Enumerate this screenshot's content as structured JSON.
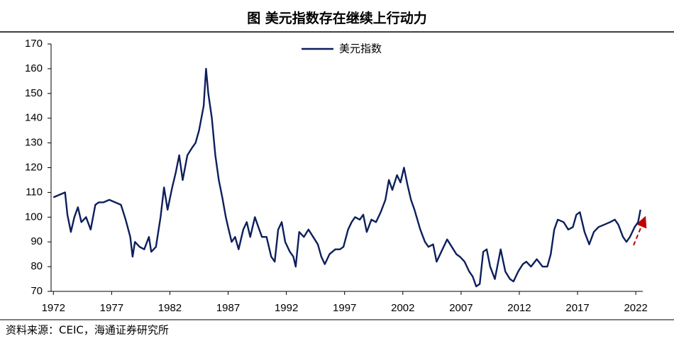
{
  "chart_data": {
    "type": "line",
    "title": "图  美元指数存在继续上行动力",
    "source": "资料来源：CEIC，海通证券研究所",
    "legend": "top",
    "xlim": [
      1971.8,
      2022.6
    ],
    "xticks": [
      1972,
      1977,
      1982,
      1987,
      1992,
      1997,
      2002,
      2007,
      2012,
      2017,
      2022
    ],
    "ylim": [
      70,
      170
    ],
    "yticks": [
      70,
      80,
      90,
      100,
      110,
      120,
      130,
      140,
      150,
      160,
      170
    ],
    "x": [
      1972.0,
      1972.5,
      1973.0,
      1973.2,
      1973.5,
      1973.8,
      1974.1,
      1974.4,
      1974.8,
      1975.2,
      1975.6,
      1975.9,
      1976.3,
      1976.8,
      1977.3,
      1977.8,
      1978.2,
      1978.6,
      1978.8,
      1979.0,
      1979.4,
      1979.8,
      1980.2,
      1980.4,
      1980.8,
      1981.2,
      1981.5,
      1981.8,
      1982.2,
      1982.5,
      1982.8,
      1983.1,
      1983.5,
      1983.9,
      1984.2,
      1984.5,
      1984.9,
      1985.1,
      1985.3,
      1985.6,
      1985.9,
      1986.2,
      1986.5,
      1986.8,
      1987.0,
      1987.3,
      1987.6,
      1987.9,
      1988.3,
      1988.6,
      1988.9,
      1989.3,
      1989.6,
      1989.9,
      1990.3,
      1990.7,
      1991.0,
      1991.3,
      1991.6,
      1991.9,
      1992.3,
      1992.6,
      1992.8,
      1993.1,
      1993.5,
      1993.9,
      1994.3,
      1994.7,
      1995.0,
      1995.3,
      1995.7,
      1996.2,
      1996.6,
      1996.9,
      1997.3,
      1997.6,
      1997.9,
      1998.3,
      1998.6,
      1998.9,
      1999.3,
      1999.7,
      2000.1,
      2000.5,
      2000.8,
      2001.1,
      2001.5,
      2001.8,
      2002.1,
      2002.4,
      2002.7,
      2003.0,
      2003.5,
      2003.9,
      2004.2,
      2004.6,
      2004.9,
      2005.3,
      2005.8,
      2006.2,
      2006.6,
      2006.9,
      2007.3,
      2007.7,
      2008.0,
      2008.3,
      2008.6,
      2008.9,
      2009.2,
      2009.5,
      2009.9,
      2010.4,
      2010.8,
      2011.2,
      2011.5,
      2011.9,
      2012.3,
      2012.6,
      2013.0,
      2013.5,
      2014.0,
      2014.4,
      2014.7,
      2015.0,
      2015.3,
      2015.8,
      2016.2,
      2016.6,
      2016.9,
      2017.2,
      2017.6,
      2018.0,
      2018.4,
      2018.8,
      2019.3,
      2019.8,
      2020.2,
      2020.5,
      2020.9,
      2021.2,
      2021.5,
      2021.9,
      2022.2,
      2022.4
    ],
    "series": [
      {
        "name": "美元指数",
        "color": "#0d1f5c",
        "values": [
          108,
          109,
          110,
          101,
          94,
          100,
          104,
          98,
          100,
          95,
          105,
          106,
          106,
          107,
          106,
          105,
          99,
          92,
          84,
          90,
          88,
          87,
          92,
          86,
          88,
          100,
          112,
          103,
          112,
          118,
          125,
          115,
          125,
          128,
          130,
          135,
          145,
          160,
          150,
          140,
          125,
          115,
          108,
          100,
          96,
          90,
          92,
          87,
          95,
          98,
          92,
          100,
          96,
          92,
          92,
          84,
          82,
          95,
          98,
          90,
          86,
          84,
          80,
          94,
          92,
          95,
          92,
          89,
          84,
          81,
          85,
          87,
          87,
          88,
          95,
          98,
          100,
          99,
          101,
          94,
          99,
          98,
          102,
          107,
          115,
          111,
          117,
          114,
          120,
          113,
          107,
          103,
          95,
          90,
          88,
          89,
          82,
          86,
          91,
          88,
          85,
          84,
          82,
          78,
          76,
          72,
          73,
          86,
          87,
          80,
          75,
          87,
          78,
          75,
          74,
          78,
          81,
          82,
          80,
          83,
          80,
          80,
          85,
          95,
          99,
          98,
          95,
          96,
          101,
          102,
          94,
          89,
          94,
          96,
          97,
          98,
          99,
          97,
          92,
          90,
          92,
          96,
          98,
          103
        ]
      }
    ]
  }
}
